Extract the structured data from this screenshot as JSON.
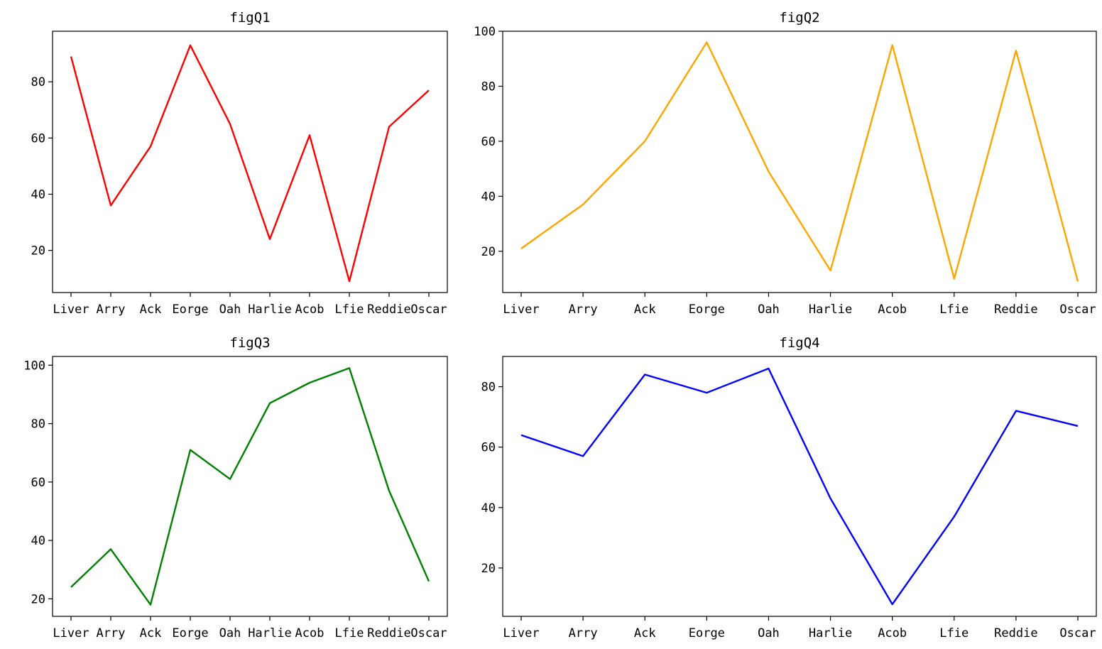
{
  "chart_data": [
    {
      "type": "line",
      "title": "figQ1",
      "categories": [
        "Liver",
        "Arry",
        "Ack",
        "Eorge",
        "Oah",
        "Harlie",
        "Acob",
        "Lfie",
        "Reddie",
        "Oscar"
      ],
      "series": [
        {
          "values": [
            89,
            36,
            57,
            93,
            65,
            24,
            61,
            9,
            64,
            77
          ],
          "color": "#ff0000"
        }
      ],
      "yticks": [
        20,
        40,
        60,
        80
      ],
      "ylim": [
        5,
        98
      ],
      "grid": false
    },
    {
      "type": "line",
      "title": "figQ2",
      "categories": [
        "Liver",
        "Arry",
        "Ack",
        "Eorge",
        "Oah",
        "Harlie",
        "Acob",
        "Lfie",
        "Reddie",
        "Oscar"
      ],
      "series": [
        {
          "values": [
            21,
            37,
            60,
            96,
            49,
            13,
            95,
            10,
            93,
            9
          ],
          "color": "#ffa500"
        }
      ],
      "yticks": [
        20,
        40,
        60,
        80,
        100
      ],
      "ylim": [
        5,
        100
      ],
      "grid": false
    },
    {
      "type": "line",
      "title": "figQ3",
      "categories": [
        "Liver",
        "Arry",
        "Ack",
        "Eorge",
        "Oah",
        "Harlie",
        "Acob",
        "Lfie",
        "Reddie",
        "Oscar"
      ],
      "series": [
        {
          "values": [
            24,
            37,
            18,
            71,
            61,
            87,
            94,
            99,
            57,
            26
          ],
          "color": "#008000"
        }
      ],
      "yticks": [
        20,
        40,
        60,
        80,
        100
      ],
      "ylim": [
        14,
        103
      ],
      "grid": false
    },
    {
      "type": "line",
      "title": "figQ4",
      "categories": [
        "Liver",
        "Arry",
        "Ack",
        "Eorge",
        "Oah",
        "Harlie",
        "Acob",
        "Lfie",
        "Reddie",
        "Oscar"
      ],
      "series": [
        {
          "values": [
            64,
            57,
            84,
            78,
            86,
            43,
            8,
            37,
            72,
            67
          ],
          "color": "#0000ff"
        }
      ],
      "yticks": [
        20,
        40,
        60,
        80
      ],
      "ylim": [
        4,
        90
      ],
      "grid": false
    }
  ]
}
